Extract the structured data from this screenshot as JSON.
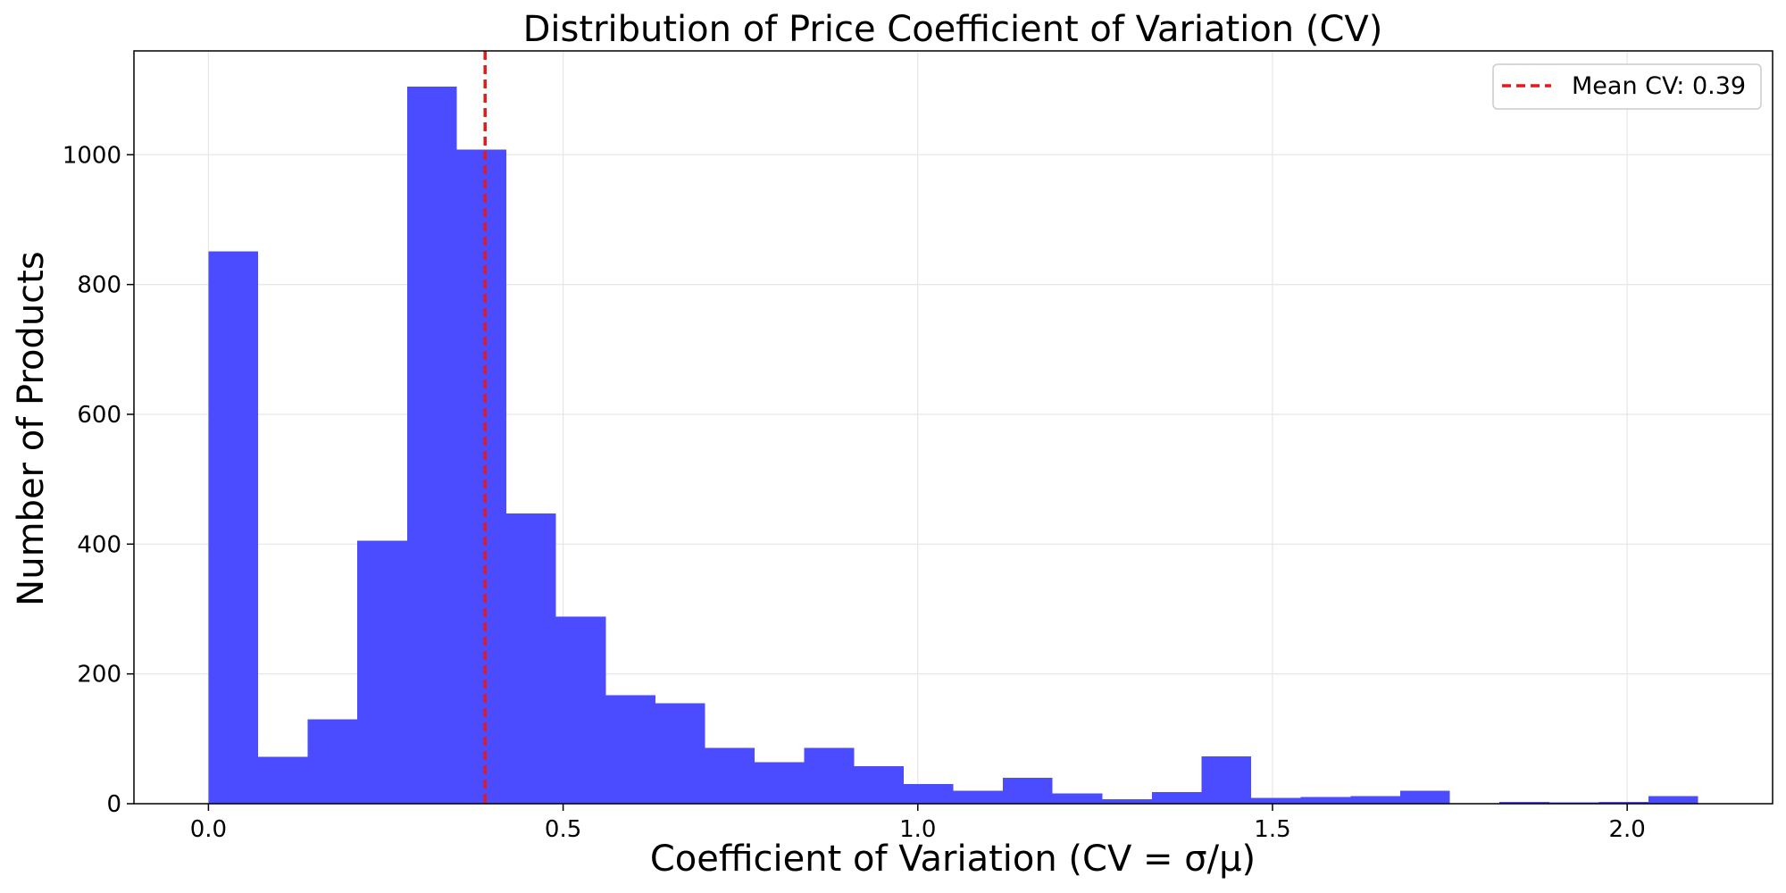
{
  "chart_data": {
    "type": "bar",
    "title": "Distribution of Price Coefficient of Variation (CV)",
    "xlabel": "Coefficient of Variation (CV = σ/μ)",
    "ylabel": "Number of Products",
    "bins": {
      "edges": [
        0.0,
        0.07,
        0.14,
        0.21,
        0.28,
        0.35,
        0.42,
        0.49,
        0.56,
        0.63,
        0.7,
        0.77,
        0.84,
        0.91,
        0.98,
        1.05,
        1.12,
        1.19,
        1.26,
        1.33,
        1.4,
        1.47,
        1.54,
        1.61,
        1.68,
        1.75,
        1.82,
        1.89,
        1.96,
        2.03,
        2.1
      ],
      "counts": [
        851,
        72,
        130,
        405,
        1105,
        1008,
        447,
        288,
        167,
        155,
        86,
        64,
        86,
        58,
        30,
        20,
        40,
        16,
        7,
        18,
        73,
        9,
        10,
        12,
        20,
        0,
        3,
        2,
        3,
        12
      ]
    },
    "bar_color": "#4b4bff",
    "mean_line": {
      "value": 0.39,
      "label": "Mean CV: 0.39",
      "color": "#e41a1a"
    },
    "xlim": [
      -0.105,
      2.205
    ],
    "ylim": [
      0,
      1160
    ],
    "xticks": [
      {
        "value": 0.0,
        "label": "0.0"
      },
      {
        "value": 0.5,
        "label": "0.5"
      },
      {
        "value": 1.0,
        "label": "1.0"
      },
      {
        "value": 1.5,
        "label": "1.5"
      },
      {
        "value": 2.0,
        "label": "2.0"
      }
    ],
    "yticks": [
      {
        "value": 0,
        "label": "0"
      },
      {
        "value": 200,
        "label": "200"
      },
      {
        "value": 400,
        "label": "400"
      },
      {
        "value": 600,
        "label": "600"
      },
      {
        "value": 800,
        "label": "800"
      },
      {
        "value": 1000,
        "label": "1000"
      }
    ],
    "grid": true,
    "legend_position": "top-right"
  }
}
